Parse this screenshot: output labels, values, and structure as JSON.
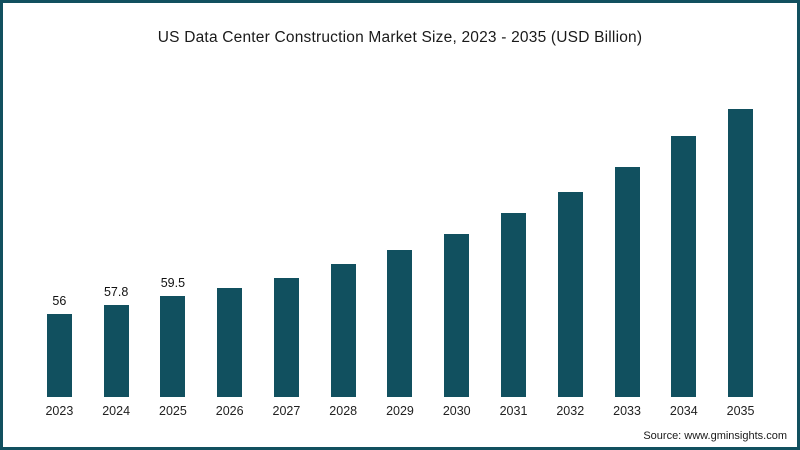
{
  "title": "US Data Center Construction Market Size, 2023 - 2035 (USD Billion)",
  "source": "Source: www.gminsights.com",
  "colors": {
    "bar": "#11505f",
    "border": "#11505f",
    "title_text": "#1a1a1a",
    "tick_text": "#222222"
  },
  "chart_data": {
    "type": "bar",
    "title": "US Data Center Construction Market Size, 2023 - 2035 (USD Billion)",
    "categories": [
      "2023",
      "2024",
      "2025",
      "2026",
      "2027",
      "2028",
      "2029",
      "2030",
      "2031",
      "2032",
      "2033",
      "2034",
      "2035"
    ],
    "values": [
      56,
      57.8,
      59.5,
      61,
      63,
      65.7,
      68.5,
      71.6,
      75.5,
      79.6,
      84.5,
      90.5,
      96
    ],
    "data_labels": [
      "56",
      "57.8",
      "59.5",
      "",
      "",
      "",
      "",
      "",
      "",
      "",
      "",
      "",
      ""
    ],
    "xlabel": "",
    "ylabel": "",
    "ylim": [
      40,
      98
    ],
    "grid": false,
    "legend": false,
    "bar_color": "#11505f"
  }
}
